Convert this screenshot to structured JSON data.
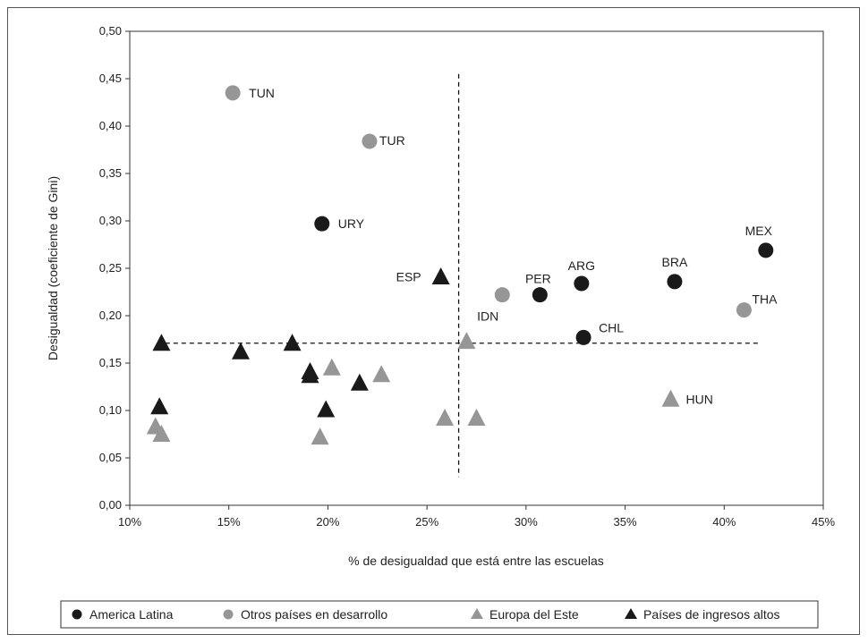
{
  "chart_data": {
    "type": "scatter",
    "xlabel": "% de desigualdad que está entre las escuelas",
    "ylabel": "Desigualdad (coeficiente de Gini)",
    "xlim": [
      0.1,
      0.45
    ],
    "ylim": [
      0.0,
      0.5
    ],
    "x_ticks": [
      "10%",
      "15%",
      "20%",
      "25%",
      "30%",
      "35%",
      "40%",
      "45%"
    ],
    "y_ticks": [
      "0,00",
      "0,05",
      "0,10",
      "0,15",
      "0,20",
      "0,25",
      "0,30",
      "0,35",
      "0,40",
      "0,45",
      "0,50"
    ],
    "grid": false,
    "legend_position": "bottom",
    "reference_lines": {
      "vertical_x": 0.266,
      "horizontal_y": 0.171
    },
    "series": [
      {
        "name": "America Latina",
        "marker": "circle",
        "color": "#1a1a1a",
        "points": [
          {
            "x": 0.197,
            "y": 0.297,
            "label": "URY"
          },
          {
            "x": 0.307,
            "y": 0.222,
            "label": "PER"
          },
          {
            "x": 0.328,
            "y": 0.234,
            "label": "ARG"
          },
          {
            "x": 0.375,
            "y": 0.236,
            "label": "BRA"
          },
          {
            "x": 0.329,
            "y": 0.177,
            "label": "CHL"
          },
          {
            "x": 0.421,
            "y": 0.269,
            "label": "MEX"
          }
        ]
      },
      {
        "name": "Otros países en desarrollo",
        "marker": "circle",
        "color": "#969696",
        "points": [
          {
            "x": 0.152,
            "y": 0.435,
            "label": "TUN"
          },
          {
            "x": 0.221,
            "y": 0.384,
            "label": "TUR"
          },
          {
            "x": 0.288,
            "y": 0.222,
            "label": "IDN"
          },
          {
            "x": 0.41,
            "y": 0.206,
            "label": "THA"
          }
        ]
      },
      {
        "name": "Europa del Este",
        "marker": "triangle",
        "color": "#969696",
        "points": [
          {
            "x": 0.113,
            "y": 0.083,
            "label": ""
          },
          {
            "x": 0.116,
            "y": 0.075,
            "label": ""
          },
          {
            "x": 0.196,
            "y": 0.072,
            "label": ""
          },
          {
            "x": 0.202,
            "y": 0.145,
            "label": ""
          },
          {
            "x": 0.227,
            "y": 0.138,
            "label": ""
          },
          {
            "x": 0.259,
            "y": 0.092,
            "label": ""
          },
          {
            "x": 0.27,
            "y": 0.173,
            "label": ""
          },
          {
            "x": 0.275,
            "y": 0.092,
            "label": ""
          },
          {
            "x": 0.373,
            "y": 0.112,
            "label": "HUN"
          }
        ]
      },
      {
        "name": "Países de ingresos altos",
        "marker": "triangle",
        "color": "#1a1a1a",
        "points": [
          {
            "x": 0.116,
            "y": 0.171,
            "label": ""
          },
          {
            "x": 0.115,
            "y": 0.104,
            "label": ""
          },
          {
            "x": 0.156,
            "y": 0.162,
            "label": ""
          },
          {
            "x": 0.182,
            "y": 0.171,
            "label": ""
          },
          {
            "x": 0.191,
            "y": 0.141,
            "label": ""
          },
          {
            "x": 0.191,
            "y": 0.137,
            "label": ""
          },
          {
            "x": 0.199,
            "y": 0.101,
            "label": ""
          },
          {
            "x": 0.216,
            "y": 0.129,
            "label": ""
          },
          {
            "x": 0.257,
            "y": 0.241,
            "label": "ESP"
          }
        ]
      }
    ]
  }
}
